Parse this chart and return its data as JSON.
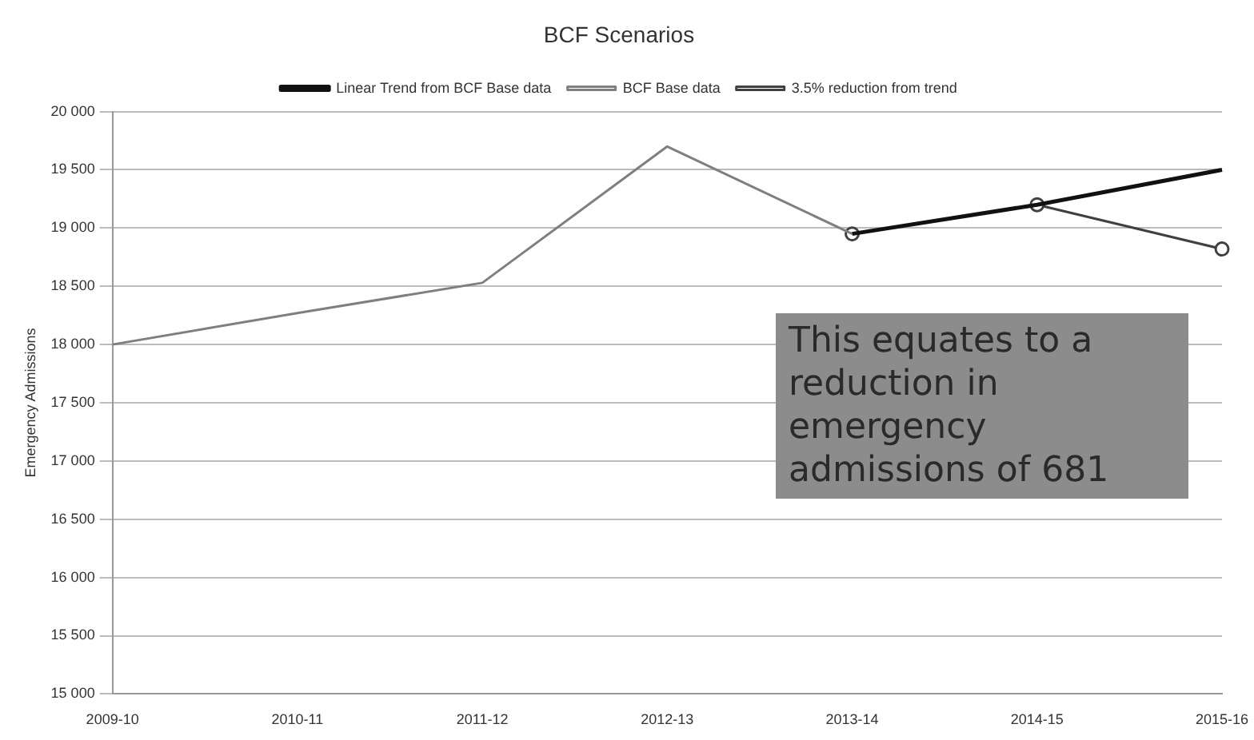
{
  "chart_data": {
    "type": "line",
    "title": "BCF Scenarios",
    "ylabel": "Emergency Admissions",
    "categories": [
      "2009-10",
      "2010-11",
      "2011-12",
      "2012-13",
      "2013-14",
      "2014-15",
      "2015-16"
    ],
    "series": [
      {
        "name": "Linear Trend from BCF Base data",
        "color": "#111111",
        "values": [
          null,
          null,
          null,
          null,
          18950,
          19200,
          19500
        ],
        "marker": "none"
      },
      {
        "name": "BCF Base data",
        "color": "#7f7f7f",
        "values": [
          18000,
          18270,
          18530,
          19700,
          18950,
          null,
          null
        ],
        "marker": "none"
      },
      {
        "name": "3.5% reduction from trend",
        "color": "#404040",
        "values": [
          null,
          null,
          null,
          null,
          18950,
          19200,
          18820
        ],
        "marker": "circle"
      }
    ],
    "ylim": [
      15000,
      20000
    ],
    "yticks": [
      {
        "value": 15000,
        "label": "15 000"
      },
      {
        "value": 15500,
        "label": "15 500"
      },
      {
        "value": 16000,
        "label": "16 000"
      },
      {
        "value": 16500,
        "label": "16 500"
      },
      {
        "value": 17000,
        "label": "17 000"
      },
      {
        "value": 17500,
        "label": "17 500"
      },
      {
        "value": 18000,
        "label": "18 000"
      },
      {
        "value": 18500,
        "label": "18 500"
      },
      {
        "value": 19000,
        "label": "19 000"
      },
      {
        "value": 19500,
        "label": "19 500"
      },
      {
        "value": 20000,
        "label": "20 000"
      }
    ],
    "grid": "y",
    "legend": "top",
    "line_style": "solid",
    "annotations": [
      "This equates to a reduction in emergency admissions of 681"
    ]
  }
}
